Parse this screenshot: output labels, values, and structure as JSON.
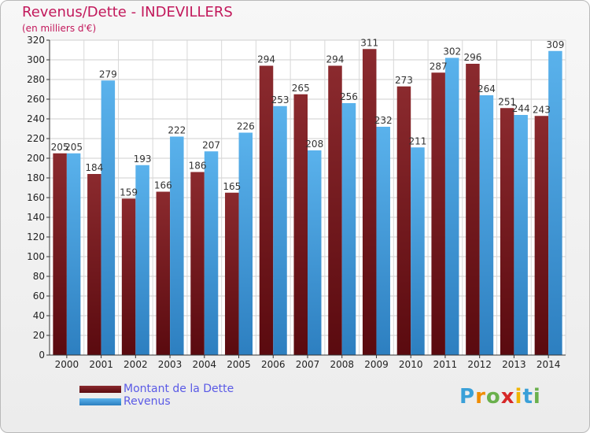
{
  "title": "Revenus/Dette - INDEVILLERS",
  "subtitle": "(en milliers d'€)",
  "logo": {
    "letters": [
      "P",
      "r",
      "o",
      "x",
      "i",
      "t",
      "i"
    ],
    "colors": [
      "#3aa0d8",
      "#f08c00",
      "#6ab04c",
      "#d62828",
      "#f0b400",
      "#3aa0d8",
      "#6ab04c"
    ]
  },
  "colors": {
    "dette": "#7a1a1f",
    "revenus": "#4aa3e0",
    "title": "#c2185b",
    "legend_text": "#5a5ae6"
  },
  "chart_data": {
    "type": "bar",
    "title": "Revenus/Dette - INDEVILLERS",
    "subtitle": "(en milliers d'€)",
    "categories": [
      "2000",
      "2001",
      "2002",
      "2003",
      "2004",
      "2005",
      "2006",
      "2007",
      "2008",
      "2009",
      "2010",
      "2011",
      "2012",
      "2013",
      "2014"
    ],
    "series": [
      {
        "name": "Montant de la Dette",
        "values": [
          205,
          184,
          159,
          166,
          186,
          165,
          294,
          265,
          294,
          311,
          273,
          287,
          296,
          251,
          243
        ]
      },
      {
        "name": "Revenus",
        "values": [
          205,
          279,
          193,
          222,
          207,
          226,
          253,
          208,
          256,
          232,
          211,
          302,
          264,
          244,
          309
        ]
      }
    ],
    "ylim": [
      0,
      320
    ],
    "yticks": [
      0,
      20,
      40,
      60,
      80,
      100,
      120,
      140,
      160,
      180,
      200,
      220,
      240,
      260,
      280,
      300,
      320
    ],
    "grid": true,
    "legend": "bottom-left"
  }
}
